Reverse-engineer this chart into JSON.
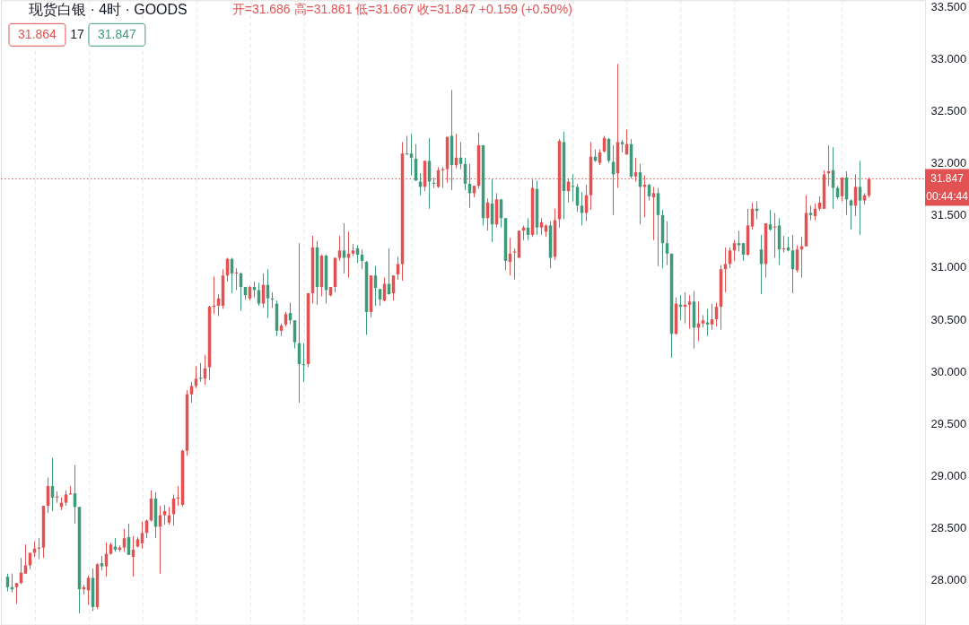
{
  "chart_data": {
    "type": "candlestick",
    "title": "现货白银 · 4时 · GOODS",
    "subtitle": "开=31.686 高=31.861 低=31.667 收=31.847 +0.159 (+0.50%)",
    "annotations": [
      "31.864",
      "17",
      "31.847",
      "00:44:44"
    ],
    "categories": [
      null,
      null,
      null,
      null,
      null,
      null,
      null,
      null,
      null,
      null,
      null,
      null,
      null,
      null,
      null,
      null,
      null,
      null,
      null,
      null,
      null,
      null,
      null,
      null,
      null,
      null,
      null,
      null,
      null,
      null,
      null,
      null,
      null,
      null,
      null,
      null,
      null,
      null,
      null,
      null,
      null,
      null,
      null,
      null,
      null,
      null,
      null,
      null,
      null,
      null,
      null,
      null,
      null,
      null,
      null,
      null,
      null,
      null,
      null,
      null,
      null,
      null,
      null,
      null,
      null,
      null,
      null,
      null,
      null,
      null,
      null,
      null,
      null,
      null,
      null,
      null,
      null,
      null,
      null,
      null,
      null,
      null,
      null,
      null,
      null,
      null,
      null,
      null,
      null,
      null,
      null,
      null,
      null,
      null,
      null,
      null,
      null,
      null,
      null,
      null,
      null,
      null,
      null,
      null,
      null,
      null,
      null,
      null,
      null,
      null,
      null,
      null,
      null,
      null,
      null,
      null,
      null,
      null,
      null,
      null,
      null,
      null,
      null,
      null,
      null,
      null,
      null,
      null,
      null,
      null,
      null,
      null,
      null,
      null,
      null,
      null,
      null,
      null,
      null,
      null,
      null,
      null,
      null,
      null,
      null,
      null,
      null,
      null,
      null,
      null,
      null,
      null,
      null,
      null,
      null,
      null,
      null,
      null,
      null,
      null,
      null,
      null,
      null,
      null,
      null,
      null,
      null,
      null,
      null,
      null,
      null,
      null,
      null,
      null,
      null,
      null,
      null,
      null,
      null,
      null,
      null,
      null,
      null,
      null,
      null,
      null,
      null,
      null,
      null,
      null,
      null,
      null,
      null,
      null,
      null,
      null,
      null,
      null,
      null,
      null,
      null,
      null,
      null,
      null
    ],
    "ohlc": [
      [
        28.03,
        28.06,
        27.89,
        27.93
      ],
      [
        27.93,
        28.06,
        27.88,
        27.91
      ],
      [
        27.93,
        27.97,
        27.77,
        27.97
      ],
      [
        27.97,
        28.21,
        27.96,
        28.07
      ],
      [
        28.06,
        28.34,
        28.06,
        28.14
      ],
      [
        28.14,
        28.26,
        28.1,
        28.26
      ],
      [
        28.26,
        28.37,
        28.22,
        28.3
      ],
      [
        28.3,
        28.4,
        28.2,
        28.31
      ],
      [
        28.31,
        28.71,
        28.21,
        28.71
      ],
      [
        28.71,
        28.98,
        28.64,
        28.9
      ],
      [
        28.9,
        29.17,
        28.66,
        28.79
      ],
      [
        28.79,
        28.85,
        28.74,
        28.8
      ],
      [
        28.7,
        28.79,
        28.67,
        28.74
      ],
      [
        28.74,
        28.86,
        28.71,
        28.82
      ],
      [
        28.82,
        28.9,
        28.82,
        28.83
      ],
      [
        28.83,
        29.1,
        28.54,
        28.7
      ],
      [
        28.7,
        28.7,
        27.68,
        27.91
      ],
      [
        27.91,
        27.95,
        27.86,
        27.93
      ],
      [
        27.9,
        28.04,
        27.76,
        28.02
      ],
      [
        28.02,
        28.11,
        27.7,
        27.74
      ],
      [
        27.74,
        28.16,
        27.72,
        28.15
      ],
      [
        28.16,
        28.23,
        28.09,
        28.13
      ],
      [
        28.13,
        28.36,
        28.03,
        28.25
      ],
      [
        28.25,
        28.36,
        28.24,
        28.34
      ],
      [
        28.32,
        28.4,
        28.27,
        28.29
      ],
      [
        28.29,
        28.33,
        28.27,
        28.31
      ],
      [
        28.31,
        28.49,
        28.27,
        28.4
      ],
      [
        28.41,
        28.54,
        28.24,
        28.24
      ],
      [
        28.22,
        28.42,
        28.03,
        28.29
      ],
      [
        28.32,
        28.41,
        28.31,
        28.39
      ],
      [
        28.35,
        28.56,
        28.3,
        28.45
      ],
      [
        28.45,
        28.58,
        28.4,
        28.57
      ],
      [
        28.57,
        28.86,
        28.56,
        28.78
      ],
      [
        28.78,
        28.84,
        28.4,
        28.51
      ],
      [
        28.51,
        28.71,
        28.06,
        28.62
      ],
      [
        28.62,
        28.72,
        28.53,
        28.66
      ],
      [
        28.55,
        28.7,
        28.53,
        28.62
      ],
      [
        28.63,
        28.82,
        28.52,
        28.78
      ],
      [
        28.78,
        28.9,
        28.71,
        28.79
      ],
      [
        28.72,
        29.25,
        28.7,
        29.24
      ],
      [
        29.24,
        29.82,
        29.19,
        29.78
      ],
      [
        29.78,
        29.9,
        29.7,
        29.86
      ],
      [
        29.86,
        30.05,
        29.84,
        29.93
      ],
      [
        29.94,
        30.08,
        29.9,
        29.93
      ],
      [
        29.93,
        30.16,
        29.87,
        30.03
      ],
      [
        30.04,
        30.63,
        29.92,
        30.62
      ],
      [
        30.62,
        30.91,
        30.55,
        30.63
      ],
      [
        30.63,
        30.74,
        30.53,
        30.7
      ],
      [
        30.63,
        30.98,
        30.6,
        30.92
      ],
      [
        30.92,
        31.09,
        30.86,
        31.08
      ],
      [
        31.08,
        31.09,
        30.75,
        30.94
      ],
      [
        30.94,
        30.99,
        30.78,
        30.95
      ],
      [
        30.94,
        30.95,
        30.58,
        30.81
      ],
      [
        30.81,
        30.81,
        30.69,
        30.73
      ],
      [
        30.7,
        30.82,
        30.68,
        30.81
      ],
      [
        30.81,
        30.86,
        30.71,
        30.78
      ],
      [
        30.78,
        30.85,
        30.63,
        30.65
      ],
      [
        30.65,
        30.94,
        30.61,
        30.83
      ],
      [
        30.83,
        30.98,
        30.51,
        30.7
      ],
      [
        30.7,
        30.76,
        30.61,
        30.69
      ],
      [
        30.65,
        30.68,
        30.34,
        30.39
      ],
      [
        30.39,
        30.46,
        30.34,
        30.44
      ],
      [
        30.45,
        30.57,
        30.43,
        30.55
      ],
      [
        30.56,
        30.66,
        30.45,
        30.49
      ],
      [
        30.49,
        30.49,
        30.22,
        30.28
      ],
      [
        30.27,
        31.23,
        29.7,
        30.07
      ],
      [
        30.07,
        30.27,
        29.9,
        30.06
      ],
      [
        30.07,
        30.75,
        30.04,
        30.75
      ],
      [
        30.75,
        31.3,
        30.65,
        31.19
      ],
      [
        31.19,
        31.25,
        30.64,
        30.81
      ],
      [
        30.81,
        31.12,
        30.72,
        31.11
      ],
      [
        31.11,
        31.12,
        30.65,
        30.78
      ],
      [
        30.73,
        30.81,
        30.72,
        30.81
      ],
      [
        30.81,
        31.09,
        30.76,
        31.09
      ],
      [
        31.09,
        31.3,
        31.06,
        31.16
      ],
      [
        31.16,
        31.42,
        30.94,
        31.09
      ],
      [
        31.09,
        31.34,
        30.9,
        31.13
      ],
      [
        31.13,
        31.22,
        31.11,
        31.16
      ],
      [
        31.18,
        31.21,
        31.04,
        31.12
      ],
      [
        31.12,
        31.17,
        30.98,
        31.06
      ],
      [
        31.05,
        31.06,
        30.35,
        30.57
      ],
      [
        30.57,
        30.92,
        30.52,
        30.92
      ],
      [
        30.92,
        31.01,
        30.63,
        30.8
      ],
      [
        30.79,
        30.79,
        30.63,
        30.69
      ],
      [
        30.68,
        30.9,
        30.67,
        30.84
      ],
      [
        30.84,
        31.18,
        30.74,
        30.74
      ],
      [
        30.75,
        30.92,
        30.68,
        30.92
      ],
      [
        30.93,
        31.1,
        30.88,
        31.03
      ],
      [
        31.03,
        32.2,
        30.87,
        32.09
      ],
      [
        32.09,
        32.26,
        32.08,
        32.08
      ],
      [
        32.09,
        32.28,
        31.88,
        32.05
      ],
      [
        32.04,
        32.18,
        31.83,
        31.83
      ],
      [
        31.82,
        31.9,
        31.69,
        31.77
      ],
      [
        31.77,
        32.02,
        31.73,
        32.02
      ],
      [
        32.02,
        32.24,
        31.56,
        31.82
      ],
      [
        31.81,
        31.86,
        31.76,
        31.8
      ],
      [
        31.77,
        31.96,
        31.76,
        31.93
      ],
      [
        31.93,
        31.96,
        31.76,
        31.94
      ],
      [
        31.94,
        32.25,
        31.81,
        32.25
      ],
      [
        32.26,
        32.7,
        31.74,
        31.98
      ],
      [
        31.98,
        32.28,
        31.95,
        32.05
      ],
      [
        32.05,
        32.2,
        31.94,
        31.99
      ],
      [
        31.99,
        32.05,
        31.74,
        31.8
      ],
      [
        31.8,
        31.99,
        31.57,
        31.71
      ],
      [
        31.71,
        31.78,
        31.67,
        31.78
      ],
      [
        31.78,
        32.29,
        31.75,
        32.17
      ],
      [
        32.17,
        32.17,
        31.4,
        31.47
      ],
      [
        31.47,
        31.66,
        31.35,
        31.62
      ],
      [
        31.61,
        31.84,
        31.24,
        31.41
      ],
      [
        31.41,
        31.71,
        31.38,
        31.65
      ],
      [
        31.65,
        31.65,
        31.38,
        31.47
      ],
      [
        31.47,
        31.47,
        30.97,
        31.06
      ],
      [
        31.05,
        31.28,
        30.92,
        31.13
      ],
      [
        31.14,
        31.18,
        30.88,
        31.15
      ],
      [
        31.09,
        31.35,
        31.09,
        31.35
      ],
      [
        31.35,
        31.4,
        31.26,
        31.38
      ],
      [
        31.38,
        31.47,
        31.26,
        31.31
      ],
      [
        31.31,
        31.84,
        31.29,
        31.76
      ],
      [
        31.75,
        31.83,
        31.31,
        31.38
      ],
      [
        31.38,
        31.47,
        31.31,
        31.43
      ],
      [
        31.34,
        31.41,
        31.29,
        31.4
      ],
      [
        31.4,
        31.44,
        30.99,
        31.09
      ],
      [
        31.1,
        31.56,
        31.07,
        31.45
      ],
      [
        31.46,
        32.23,
        31.38,
        32.21
      ],
      [
        32.2,
        32.3,
        31.46,
        31.73
      ],
      [
        31.73,
        31.85,
        31.62,
        31.82
      ],
      [
        31.78,
        31.89,
        31.63,
        31.77
      ],
      [
        31.77,
        31.8,
        31.53,
        31.59
      ],
      [
        31.59,
        31.72,
        31.4,
        31.52
      ],
      [
        31.52,
        31.79,
        31.44,
        31.69
      ],
      [
        31.69,
        32.2,
        31.55,
        32.06
      ],
      [
        32.06,
        32.13,
        32.01,
        32.02
      ],
      [
        32.0,
        32.13,
        31.98,
        32.1
      ],
      [
        32.11,
        32.26,
        32.1,
        32.24
      ],
      [
        32.23,
        32.24,
        32.0,
        32.02
      ],
      [
        32.01,
        32.17,
        31.5,
        31.89
      ],
      [
        31.9,
        32.95,
        31.76,
        32.2
      ],
      [
        32.2,
        32.22,
        32.1,
        32.18
      ],
      [
        32.08,
        32.32,
        32.08,
        32.18
      ],
      [
        32.18,
        32.23,
        31.85,
        31.87
      ],
      [
        31.87,
        32.05,
        31.82,
        31.91
      ],
      [
        31.91,
        31.99,
        31.41,
        31.77
      ],
      [
        31.77,
        31.88,
        31.48,
        31.79
      ],
      [
        31.79,
        31.8,
        31.64,
        31.68
      ],
      [
        31.67,
        31.77,
        31.26,
        31.71
      ],
      [
        31.71,
        31.76,
        31.01,
        31.5
      ],
      [
        31.5,
        31.55,
        30.99,
        31.23
      ],
      [
        31.23,
        31.44,
        31.02,
        31.13
      ],
      [
        31.13,
        31.13,
        30.13,
        30.36
      ],
      [
        30.36,
        30.71,
        30.35,
        30.65
      ],
      [
        30.64,
        30.73,
        30.49,
        30.62
      ],
      [
        30.62,
        30.76,
        30.46,
        30.64
      ],
      [
        30.64,
        30.73,
        30.41,
        30.67
      ],
      [
        30.67,
        30.77,
        30.22,
        30.42
      ],
      [
        30.42,
        30.67,
        30.29,
        30.46
      ],
      [
        30.46,
        30.54,
        30.42,
        30.49
      ],
      [
        30.47,
        30.6,
        30.34,
        30.45
      ],
      [
        30.45,
        30.65,
        30.4,
        30.5
      ],
      [
        30.5,
        30.66,
        30.43,
        30.62
      ],
      [
        30.62,
        31.02,
        30.4,
        30.98
      ],
      [
        30.98,
        31.19,
        30.76,
        31.03
      ],
      [
        31.03,
        31.19,
        30.99,
        31.16
      ],
      [
        31.16,
        31.26,
        31.06,
        31.23
      ],
      [
        31.23,
        31.35,
        31.15,
        31.21
      ],
      [
        31.23,
        31.23,
        31.06,
        31.12
      ],
      [
        31.12,
        31.56,
        31.11,
        31.4
      ],
      [
        31.39,
        31.62,
        31.36,
        31.56
      ],
      [
        31.56,
        31.63,
        31.46,
        31.54
      ],
      [
        31.17,
        31.31,
        30.74,
        31.03
      ],
      [
        31.03,
        31.42,
        30.9,
        31.42
      ],
      [
        31.41,
        31.55,
        31.35,
        31.36
      ],
      [
        31.38,
        31.52,
        31.09,
        31.39
      ],
      [
        31.4,
        31.47,
        31.02,
        31.17
      ],
      [
        31.17,
        31.3,
        31.14,
        31.18
      ],
      [
        31.19,
        31.29,
        31.15,
        31.16
      ],
      [
        31.16,
        31.31,
        30.75,
        30.98
      ],
      [
        30.97,
        31.21,
        30.95,
        31.17
      ],
      [
        31.17,
        31.29,
        30.9,
        31.2
      ],
      [
        31.2,
        31.69,
        31.2,
        31.52
      ],
      [
        31.52,
        31.59,
        31.45,
        31.5
      ],
      [
        31.49,
        31.61,
        31.45,
        31.56
      ],
      [
        31.56,
        31.68,
        31.54,
        31.62
      ],
      [
        31.56,
        31.93,
        31.56,
        31.89
      ],
      [
        31.9,
        32.17,
        31.78,
        31.92
      ],
      [
        31.93,
        32.15,
        31.56,
        31.76
      ],
      [
        31.76,
        31.78,
        31.65,
        31.67
      ],
      [
        31.68,
        31.86,
        31.63,
        31.86
      ],
      [
        31.86,
        31.92,
        31.5,
        31.65
      ],
      [
        31.64,
        31.65,
        31.36,
        31.59
      ],
      [
        31.59,
        31.89,
        31.49,
        31.77
      ],
      [
        31.77,
        32.02,
        31.31,
        31.64
      ],
      [
        31.64,
        31.71,
        31.6,
        31.69
      ],
      [
        31.686,
        31.861,
        31.667,
        31.847
      ],
      null,
      null,
      null,
      null,
      null,
      null,
      null,
      null,
      null,
      null,
      null
    ],
    "colors": [
      "#3e9a7a",
      "#3e9a7a",
      "#e25252",
      "#e25252",
      "#e25252",
      "#e25252",
      "#e25252",
      "#e25252",
      "#e25252",
      "#e25252",
      "#3e9a7a",
      "#e25252",
      "#e25252",
      "#e25252",
      "#e25252",
      "#3e9a7a",
      "#3e9a7a",
      "#e25252",
      "#e25252",
      "#3e9a7a",
      "#e25252",
      "#3e9a7a",
      "#e25252",
      "#e25252",
      "#3e9a7a",
      "#e25252",
      "#e25252",
      "#3e9a7a",
      "#e25252",
      "#e25252",
      "#e25252",
      "#e25252",
      "#e25252",
      "#3e9a7a",
      "#e25252",
      "#e25252",
      "#e25252",
      "#e25252",
      "#e25252",
      "#e25252",
      "#e25252",
      "#e25252",
      "#e25252",
      "#3e9a7a",
      "#e25252",
      "#e25252",
      "#e25252",
      "#e25252",
      "#e25252",
      "#e25252",
      "#3e9a7a",
      "#e25252",
      "#3e9a7a",
      "#3e9a7a",
      "#e25252",
      "#3e9a7a",
      "#3e9a7a",
      "#e25252",
      "#3e9a7a",
      "#3e9a7a",
      "#3e9a7a",
      "#e25252",
      "#e25252",
      "#3e9a7a",
      "#3e9a7a",
      "#3e9a7a",
      "#3e9a7a",
      "#e25252",
      "#e25252",
      "#3e9a7a",
      "#e25252",
      "#3e9a7a",
      "#e25252",
      "#e25252",
      "#e25252",
      "#3e9a7a",
      "#e25252",
      "#e25252",
      "#3e9a7a",
      "#3e9a7a",
      "#3e9a7a",
      "#e25252",
      "#3e9a7a",
      "#3e9a7a",
      "#e25252",
      "#3e9a7a",
      "#e25252",
      "#e25252",
      "#e25252",
      "#3e9a7a",
      "#3e9a7a",
      "#3e9a7a",
      "#3e9a7a",
      "#e25252",
      "#3e9a7a",
      "#3e9a7a",
      "#e25252",
      "#e25252",
      "#e25252",
      "#3e9a7a",
      "#e25252",
      "#3e9a7a",
      "#3e9a7a",
      "#3e9a7a",
      "#e25252",
      "#e25252",
      "#3e9a7a",
      "#e25252",
      "#3e9a7a",
      "#e25252",
      "#3e9a7a",
      "#3e9a7a",
      "#e25252",
      "#e25252",
      "#e25252",
      "#e25252",
      "#3e9a7a",
      "#e25252",
      "#3e9a7a",
      "#e25252",
      "#e25252",
      "#3e9a7a",
      "#e25252",
      "#e25252",
      "#3e9a7a",
      "#e25252",
      "#3e9a7a",
      "#3e9a7a",
      "#3e9a7a",
      "#e25252",
      "#e25252",
      "#3e9a7a",
      "#e25252",
      "#e25252",
      "#3e9a7a",
      "#3e9a7a",
      "#e25252",
      "#3e9a7a",
      "#e25252",
      "#3e9a7a",
      "#e25252",
      "#3e9a7a",
      "#e25252",
      "#3e9a7a",
      "#e25252",
      "#3e9a7a",
      "#3e9a7a",
      "#3e9a7a",
      "#3e9a7a",
      "#e25252",
      "#3e9a7a",
      "#e25252",
      "#e25252",
      "#3e9a7a",
      "#e25252",
      "#e25252",
      "#3e9a7a",
      "#e25252",
      "#e25252",
      "#e25252",
      "#e25252",
      "#e25252",
      "#e25252",
      "#3e9a7a",
      "#3e9a7a",
      "#e25252",
      "#e25252",
      "#3e9a7a",
      "#3e9a7a",
      "#e25252",
      "#3e9a7a",
      "#e25252",
      "#3e9a7a",
      "#e25252",
      "#3e9a7a",
      "#3e9a7a",
      "#e25252",
      "#e25252",
      "#e25252",
      "#3e9a7a",
      "#e25252",
      "#e25252",
      "#e25252",
      "#e25252",
      "#3e9a7a",
      "#3e9a7a",
      "#e25252",
      "#3e9a7a",
      "#3e9a7a",
      "#e25252",
      "#3e9a7a",
      "#e25252",
      "#e25252",
      null,
      null,
      null,
      null,
      null,
      null,
      null,
      null,
      null,
      null,
      null
    ],
    "ylim": [
      27.57,
      33.56
    ],
    "yticks": [
      {
        "value": 28,
        "label": "28.000"
      },
      {
        "value": 28.5,
        "label": "28.500"
      },
      {
        "value": 29,
        "label": "29.000"
      },
      {
        "value": 29.5,
        "label": "29.500"
      },
      {
        "value": 30,
        "label": "30.000"
      },
      {
        "value": 30.5,
        "label": "30.500"
      },
      {
        "value": 31,
        "label": "31.000"
      },
      {
        "value": 31.5,
        "label": "31.500"
      },
      {
        "value": 32,
        "label": "32.000"
      },
      {
        "value": 32.5,
        "label": "32.500"
      },
      {
        "value": 33,
        "label": "33.000"
      },
      {
        "value": 33.5,
        "label": "33.500"
      }
    ],
    "ref_lines": [
      {
        "axis": "y",
        "value": 31.847,
        "label": "31.847",
        "color": "#e25252",
        "line_style": "dotted"
      }
    ],
    "grid": "x",
    "tick_labels": "y"
  }
}
